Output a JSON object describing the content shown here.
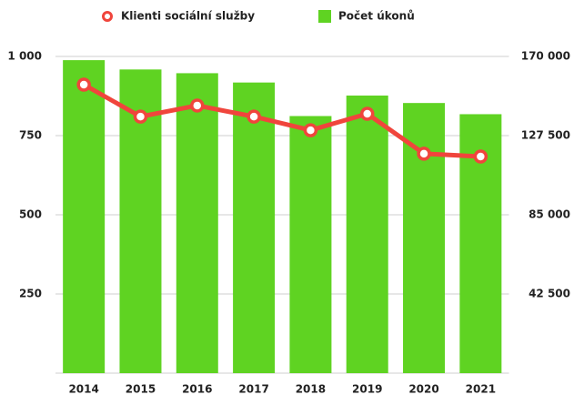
{
  "chart_data": {
    "type": "bar-line",
    "categories": [
      "2014",
      "2015",
      "2016",
      "2017",
      "2018",
      "2019",
      "2020",
      "2021"
    ],
    "series": [
      {
        "name": "Klienti sociální služby",
        "type": "line",
        "color": "#f0453c",
        "axis": "y",
        "values": [
          911,
          810,
          845,
          810,
          767,
          819,
          693,
          684
        ]
      },
      {
        "name": "Počet úkonů",
        "type": "bar",
        "color": "#5fd322",
        "axis": "y2",
        "values": [
          168000,
          163000,
          161000,
          156000,
          138000,
          149000,
          145000,
          139000
        ]
      }
    ],
    "ylim": [
      0,
      1000
    ],
    "yticks": [
      250,
      500,
      750,
      {
        "value": 1000,
        "label": "1 000"
      }
    ],
    "y2lim": [
      0,
      170000
    ],
    "y2ticks": [
      {
        "value": 42500,
        "label": "42 500"
      },
      {
        "value": 85000,
        "label": "85 000"
      },
      {
        "value": 127500,
        "label": "127 500"
      },
      {
        "value": 170000,
        "label": "170 000"
      }
    ],
    "grid": true
  }
}
